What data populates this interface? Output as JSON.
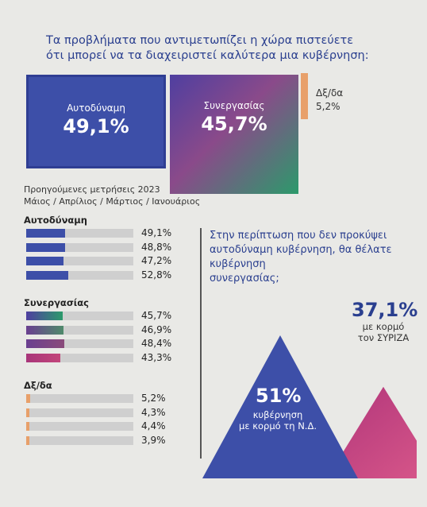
{
  "header": {
    "line1": "Τα προβλήματα που αντιμετωπίζει η χώρα πιστεύετε",
    "line2": "ότι μπορεί να τα διαχειριστεί καλύτερα μια κυβέρνηση:"
  },
  "top_boxes": {
    "autodynami": {
      "label": "Αυτοδύναμη",
      "value": "49,1%"
    },
    "synergasias": {
      "label": "Συνεργασίας",
      "value": "45,7%"
    },
    "dk": {
      "label": "Δξ/δα",
      "value": "5,2%"
    }
  },
  "previous": {
    "line1": "Προηγούμενες μετρήσεις 2023",
    "line2": "Μάιος / Απρίλιος / Μάρτιος / Ιανουάριος"
  },
  "colors": {
    "blue": "#3d4fa8",
    "orange": "#e8a06a",
    "pink": "#c2457a",
    "green": "#2c9a6b",
    "header_text": "#2a3f8f"
  },
  "chart_data": {
    "type": "bar",
    "categories": [
      "Μάιος",
      "Απρίλιος",
      "Μάρτιος",
      "Ιανουάριος"
    ],
    "groups": [
      {
        "name": "Αυτοδύναμη",
        "values": [
          49.1,
          48.8,
          47.2,
          52.8
        ],
        "labels": [
          "49,1%",
          "48,8%",
          "47,2%",
          "52,8%"
        ]
      },
      {
        "name": "Συνεργασίας",
        "values": [
          45.7,
          46.9,
          48.4,
          43.3
        ],
        "labels": [
          "45,7%",
          "46,9%",
          "48,4%",
          "43,3%"
        ]
      },
      {
        "name": "Δξ/δα",
        "values": [
          5.2,
          4.3,
          4.4,
          3.9
        ],
        "labels": [
          "5,2%",
          "4,3%",
          "4,4%",
          "3,9%"
        ]
      }
    ]
  },
  "question": {
    "line1": "Στην περίπτωση που δεν προκύψει",
    "line2": "αυτοδύναμη κυβέρνηση, θα θέλατε",
    "line3": "κυβέρνηση",
    "line4": "συνεργασίας;"
  },
  "triangles": {
    "nd": {
      "value": "51%",
      "line1": "κυβέρνηση",
      "line2": "με κορμό τη Ν.Δ.",
      "share": 51
    },
    "syriza": {
      "value": "37,1%",
      "line1": "με κορμό",
      "line2": "τον ΣΥΡΙΖΑ",
      "share": 37.1
    }
  }
}
